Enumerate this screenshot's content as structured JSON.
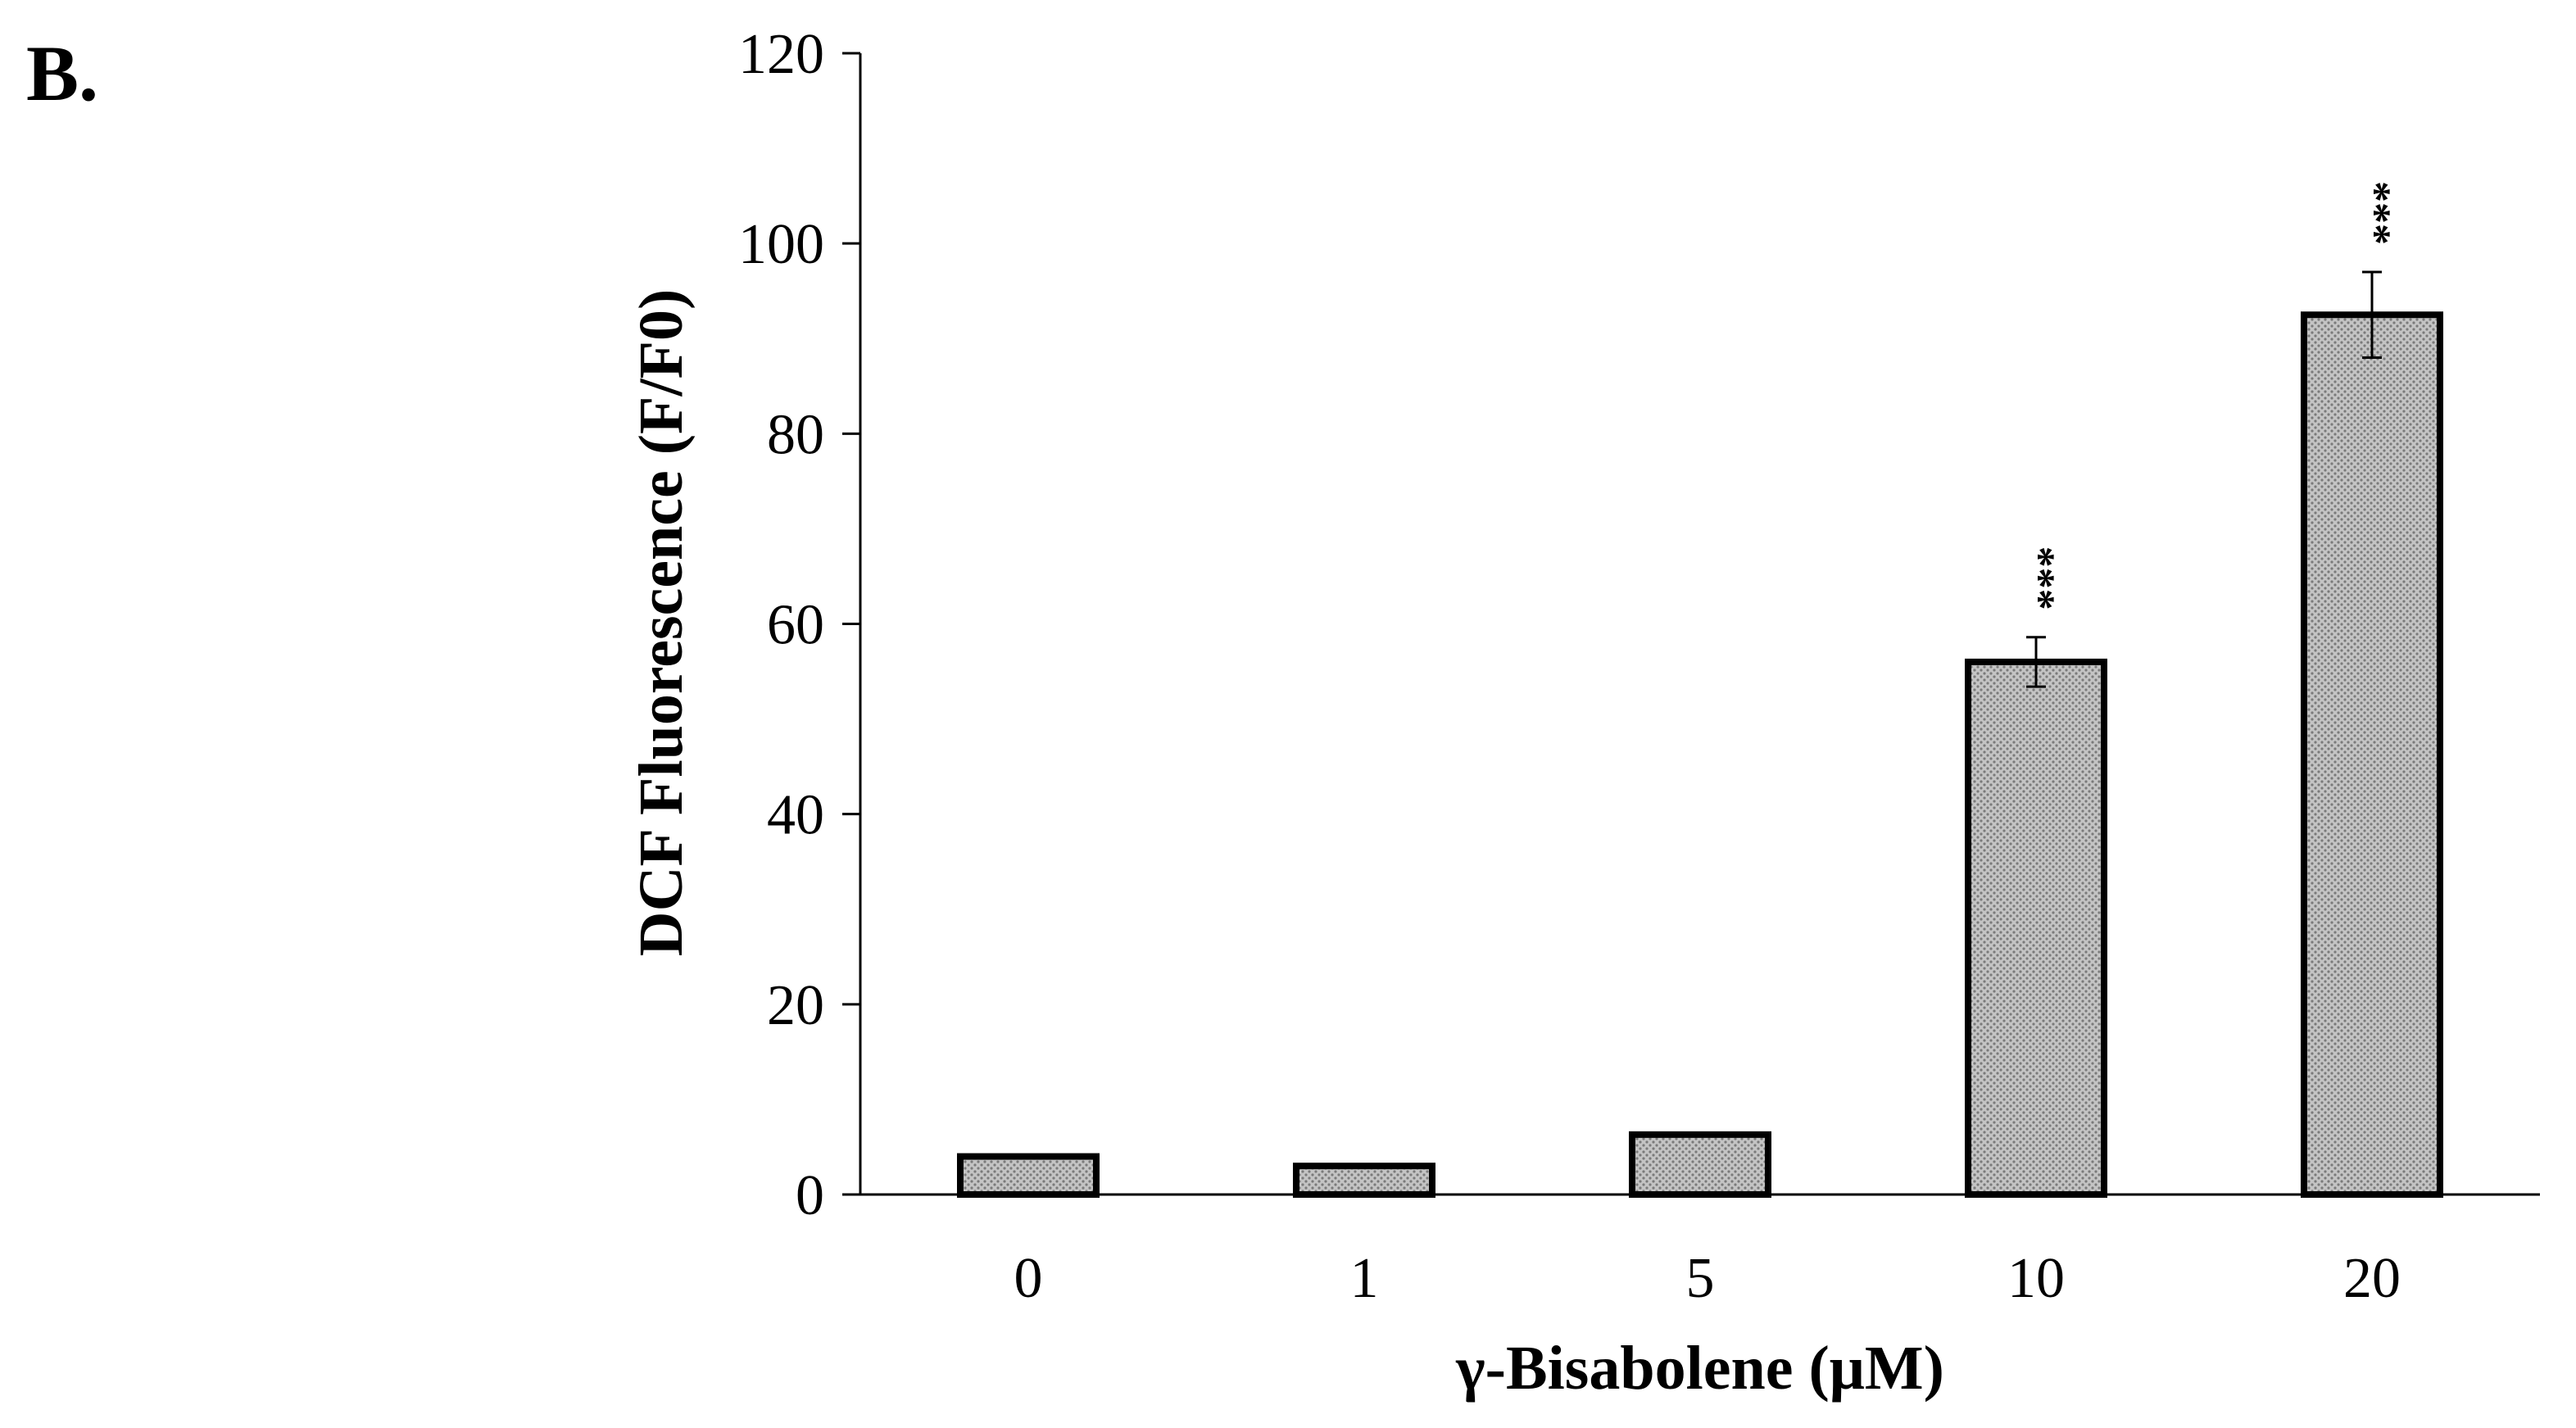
{
  "panel_label": "B.",
  "chart_data": {
    "type": "bar",
    "categories": [
      "0",
      "1",
      "5",
      "10",
      "20"
    ],
    "values": [
      4,
      3,
      6.3,
      56,
      92.5
    ],
    "errors": [
      0,
      0,
      0,
      2.6,
      4.5
    ],
    "significance": [
      "",
      "",
      "",
      "***",
      "***"
    ],
    "xlabel": "γ-Bisabolene (μM)",
    "ylabel": "DCF Fluorescence (F/F0)",
    "ylim": [
      0,
      120
    ],
    "yticks": [
      "0",
      "20",
      "40",
      "60",
      "80",
      "100",
      "120"
    ],
    "bar_color": "#b8b8b8",
    "bar_edge_color": "#000000",
    "grid": false,
    "legend": "none"
  }
}
